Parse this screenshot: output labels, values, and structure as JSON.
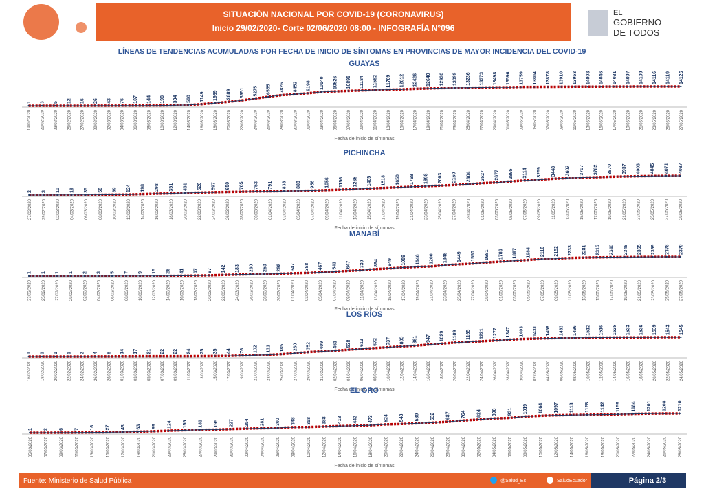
{
  "header": {
    "title": "SITUACIÓN NACIONAL POR  COVID-19 (CORONAVIRUS)",
    "subtitle": "Inicio 29/02/2020- Corte 02/06/2020 08:00  - INFOGRAFÍA N°096",
    "logo": [
      "EL",
      "GOBIERNO",
      "DE TODOS"
    ]
  },
  "heading": "LÍNEAS DE TENDENCIAS ACUMULADAS POR FECHA DE INICIO DE SÍNTOMAS EN PROVINCIAS DE MAYOR INCIDENCIA DEL COVID-19",
  "chart_data": [
    {
      "type": "line",
      "title": "GUAYAS",
      "xlabel": "Fecha de inicio de síntomas",
      "color": "#c00000",
      "categories": [
        "19/02/2020",
        "21/02/2020",
        "23/02/2020",
        "25/02/2020",
        "27/02/2020",
        "29/02/2020",
        "02/03/2020",
        "04/03/2020",
        "06/03/2020",
        "08/03/2020",
        "10/03/2020",
        "12/03/2020",
        "14/03/2020",
        "16/03/2020",
        "18/03/2020",
        "20/03/2020",
        "22/03/2020",
        "24/03/2020",
        "26/03/2020",
        "28/03/2020",
        "30/03/2020",
        "01/04/2020",
        "03/04/2020",
        "05/04/2020",
        "07/04/2020",
        "09/04/2020",
        "11/04/2020",
        "13/04/2020",
        "15/04/2020",
        "17/04/2020",
        "19/04/2020",
        "21/04/2020",
        "23/04/2020",
        "25/04/2020",
        "27/04/2020",
        "29/04/2020",
        "01/05/2020",
        "03/05/2020",
        "05/05/2020",
        "07/05/2020",
        "09/05/2020",
        "11/05/2020",
        "13/05/2020",
        "15/05/2020",
        "17/05/2020",
        "19/05/2020",
        "21/05/2020",
        "23/05/2020",
        "25/05/2020",
        "27/05/2020"
      ],
      "values": [
        1,
        3,
        5,
        12,
        16,
        26,
        43,
        76,
        107,
        144,
        198,
        334,
        560,
        1149,
        1989,
        2889,
        3951,
        5275,
        6555,
        7826,
        8452,
        9198,
        10140,
        10526,
        10895,
        11184,
        11582,
        11789,
        12012,
        12426,
        12640,
        12930,
        13099,
        13236,
        13373,
        13498,
        13596,
        13759,
        13804,
        13878,
        13910,
        13953,
        14003,
        14046,
        14081,
        14097,
        14109,
        14116,
        14119,
        14126
      ]
    },
    {
      "type": "line",
      "title": "PICHINCHA",
      "xlabel": "Fecha de inicio de síntomas",
      "color": "#c00000",
      "categories": [
        "27/02/2020",
        "29/02/2020",
        "02/03/2020",
        "04/03/2020",
        "06/03/2020",
        "08/03/2020",
        "10/03/2020",
        "12/03/2020",
        "14/03/2020",
        "16/03/2020",
        "18/03/2020",
        "20/03/2020",
        "22/03/2020",
        "24/03/2020",
        "26/03/2020",
        "28/03/2020",
        "30/03/2020",
        "01/04/2020",
        "03/04/2020",
        "05/04/2020",
        "07/04/2020",
        "09/04/2020",
        "11/04/2020",
        "13/04/2020",
        "15/04/2020",
        "17/04/2020",
        "19/04/2020",
        "21/04/2020",
        "23/04/2020",
        "25/04/2020",
        "27/04/2020",
        "29/04/2020",
        "01/05/2020",
        "03/05/2020",
        "05/05/2020",
        "07/05/2020",
        "09/05/2020",
        "11/05/2020",
        "13/05/2020",
        "15/05/2020",
        "17/05/2020",
        "19/05/2020",
        "21/05/2020",
        "23/05/2020",
        "25/05/2020",
        "27/05/2020",
        "29/05/2020"
      ],
      "values": [
        2,
        3,
        10,
        19,
        35,
        58,
        89,
        124,
        198,
        298,
        351,
        431,
        526,
        597,
        650,
        705,
        753,
        791,
        838,
        888,
        956,
        1056,
        1156,
        1265,
        1405,
        1518,
        1650,
        1768,
        1898,
        2003,
        2150,
        2304,
        2527,
        2677,
        2895,
        3114,
        3259,
        3448,
        3602,
        3707,
        3782,
        3870,
        3937,
        4003,
        4045,
        4071,
        4087
      ]
    },
    {
      "type": "line",
      "title": "MANABÍ",
      "xlabel": "Fecha de inicio de síntomas",
      "color": "#c00000",
      "categories": [
        "23/02/2020",
        "25/02/2020",
        "27/02/2020",
        "29/02/2020",
        "02/03/2020",
        "04/03/2020",
        "06/03/2020",
        "08/03/2020",
        "10/03/2020",
        "12/03/2020",
        "14/03/2020",
        "16/03/2020",
        "18/03/2020",
        "20/03/2020",
        "22/03/2020",
        "24/03/2020",
        "26/03/2020",
        "28/03/2020",
        "30/03/2020",
        "01/04/2020",
        "03/04/2020",
        "05/04/2020",
        "07/04/2020",
        "09/04/2020",
        "11/04/2020",
        "13/04/2020",
        "15/04/2020",
        "17/04/2020",
        "19/04/2020",
        "21/04/2020",
        "23/04/2020",
        "25/04/2020",
        "27/04/2020",
        "29/04/2020",
        "01/05/2020",
        "03/05/2020",
        "05/05/2020",
        "07/05/2020",
        "09/05/2020",
        "11/05/2020",
        "13/05/2020",
        "15/05/2020",
        "17/05/2020",
        "19/05/2020",
        "21/05/2020",
        "23/05/2020",
        "25/05/2020",
        "27/05/2020"
      ],
      "values": [
        1,
        1,
        1,
        1,
        2,
        3,
        5,
        7,
        9,
        15,
        26,
        41,
        67,
        97,
        142,
        183,
        230,
        259,
        292,
        347,
        388,
        467,
        541,
        647,
        730,
        864,
        949,
        1059,
        1146,
        1200,
        1348,
        1449,
        1550,
        1681,
        1786,
        1897,
        1984,
        2116,
        2152,
        2233,
        2281,
        2315,
        2340,
        2348,
        2365,
        2369,
        2378,
        2379
      ]
    },
    {
      "type": "line",
      "title": "LOS RÍOS",
      "xlabel": "Fecha de inicio de síntomas",
      "color": "#c00000",
      "categories": [
        "16/02/2020",
        "18/02/2020",
        "20/02/2020",
        "22/02/2020",
        "24/02/2020",
        "26/02/2020",
        "28/02/2020",
        "01/03/2020",
        "03/03/2020",
        "05/03/2020",
        "07/03/2020",
        "09/03/2020",
        "11/03/2020",
        "13/03/2020",
        "15/03/2020",
        "17/03/2020",
        "19/03/2020",
        "21/03/2020",
        "23/03/2020",
        "25/03/2020",
        "27/03/2020",
        "29/03/2020",
        "31/03/2020",
        "02/04/2020",
        "04/04/2020",
        "06/04/2020",
        "08/04/2020",
        "10/04/2020",
        "12/04/2020",
        "14/04/2020",
        "16/04/2020",
        "18/04/2020",
        "20/04/2020",
        "22/04/2020",
        "24/04/2020",
        "26/04/2020",
        "28/04/2020",
        "30/04/2020",
        "02/05/2020",
        "04/05/2020",
        "06/05/2020",
        "08/05/2020",
        "10/05/2020",
        "12/05/2020",
        "14/05/2020",
        "16/05/2020",
        "18/05/2020",
        "20/05/2020",
        "22/05/2020",
        "24/05/2020"
      ],
      "values": [
        1,
        1,
        1,
        1,
        2,
        4,
        8,
        14,
        17,
        21,
        22,
        22,
        24,
        25,
        35,
        44,
        76,
        102,
        131,
        185,
        260,
        352,
        409,
        461,
        538,
        612,
        672,
        737,
        805,
        861,
        947,
        1029,
        1109,
        1165,
        1221,
        1277,
        1347,
        1403,
        1431,
        1458,
        1483,
        1496,
        1512,
        1516,
        1525,
        1533,
        1536,
        1539,
        1543,
        1545
      ]
    },
    {
      "type": "line",
      "title": "EL ORO",
      "xlabel": "Fecha de inicio de síntomas",
      "color": "#c00000",
      "categories": [
        "05/03/2020",
        "07/03/2020",
        "09/03/2020",
        "11/03/2020",
        "13/03/2020",
        "15/03/2020",
        "17/03/2020",
        "19/03/2020",
        "21/03/2020",
        "23/03/2020",
        "25/03/2020",
        "27/03/2020",
        "29/03/2020",
        "31/03/2020",
        "02/04/2020",
        "04/04/2020",
        "06/04/2020",
        "08/04/2020",
        "10/04/2020",
        "12/04/2020",
        "14/04/2020",
        "16/04/2020",
        "18/04/2020",
        "20/04/2020",
        "22/04/2020",
        "24/04/2020",
        "26/04/2020",
        "28/04/2020",
        "30/04/2020",
        "02/05/2020",
        "04/05/2020",
        "06/05/2020",
        "08/05/2020",
        "10/05/2020",
        "12/05/2020",
        "14/05/2020",
        "16/05/2020",
        "18/05/2020",
        "20/05/2020",
        "22/05/2020",
        "24/05/2020",
        "26/05/2020",
        "28/05/2020"
      ],
      "values": [
        1,
        2,
        6,
        7,
        16,
        27,
        43,
        63,
        89,
        124,
        155,
        181,
        195,
        227,
        254,
        281,
        300,
        348,
        358,
        388,
        418,
        442,
        473,
        524,
        548,
        589,
        632,
        687,
        764,
        824,
        898,
        931,
        1019,
        1064,
        1097,
        1113,
        1128,
        1142,
        1159,
        1184,
        1201,
        1208,
        1210
      ]
    }
  ],
  "footer": {
    "source": "Fuente: Ministerio de Salud Pública",
    "twitter": "@Salud_Ec",
    "facebook": "SaludEcuador",
    "page": "Página 2/3"
  }
}
